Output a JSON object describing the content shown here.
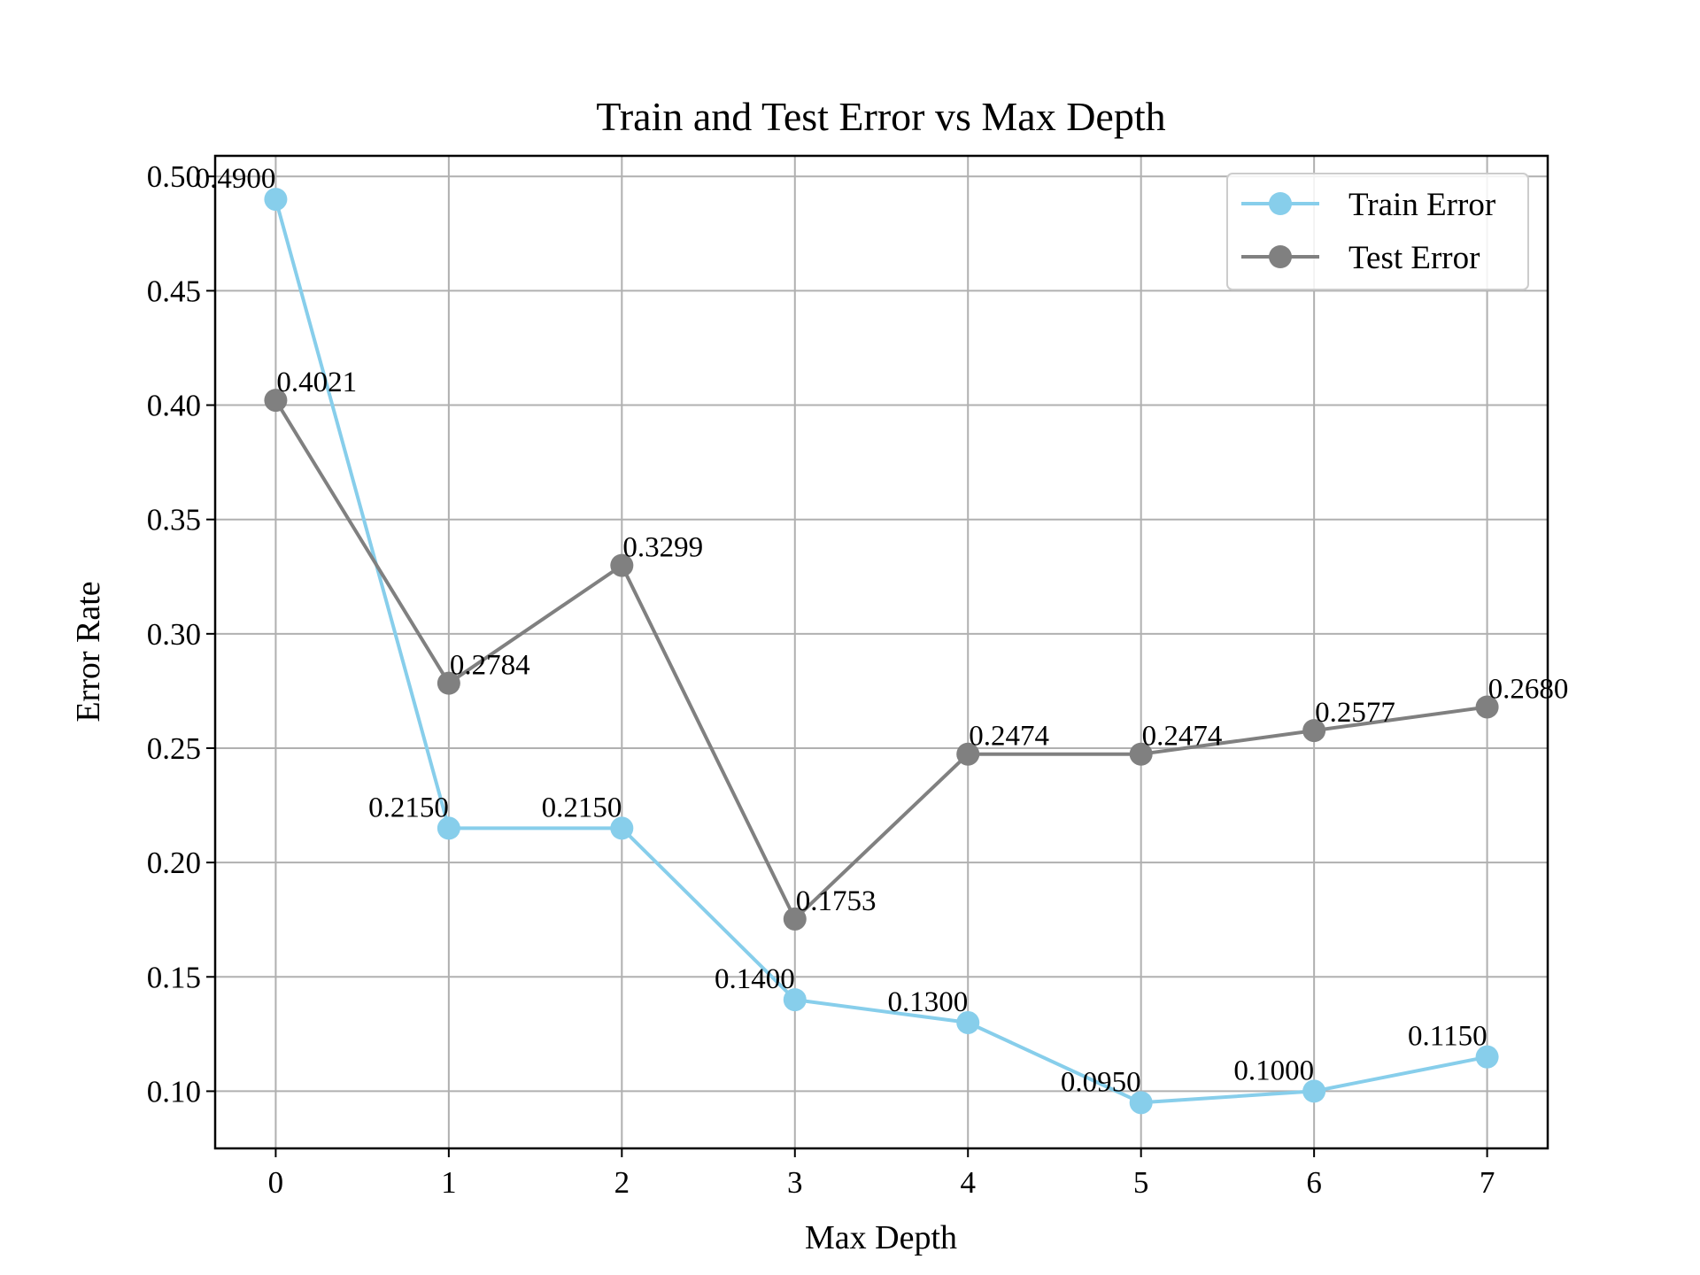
{
  "chart_data": {
    "type": "line",
    "title": "Train and Test Error vs Max Depth",
    "xlabel": "Max Depth",
    "ylabel": "Error Rate",
    "x": [
      0,
      1,
      2,
      3,
      4,
      5,
      6,
      7
    ],
    "xlim": [
      -0.35,
      7.35
    ],
    "ylim": [
      0.075,
      0.509
    ],
    "xticks": [
      "0",
      "1",
      "2",
      "3",
      "4",
      "5",
      "6",
      "7"
    ],
    "yticks": [
      "0.10",
      "0.15",
      "0.20",
      "0.25",
      "0.30",
      "0.35",
      "0.40",
      "0.45",
      "0.50"
    ],
    "grid": true,
    "legend_position": "top-right",
    "series": [
      {
        "name": "Train Error",
        "color": "#87CEEB",
        "marker": "circle",
        "values": [
          0.49,
          0.215,
          0.215,
          0.14,
          0.13,
          0.095,
          0.1,
          0.115
        ],
        "labels": [
          "0.4900",
          "0.2150",
          "0.2150",
          "0.1400",
          "0.1300",
          "0.0950",
          "0.1000",
          "0.1150"
        ]
      },
      {
        "name": "Test Error",
        "color": "#808080",
        "marker": "circle",
        "values": [
          0.4021,
          0.2784,
          0.3299,
          0.1753,
          0.2474,
          0.2474,
          0.2577,
          0.268
        ],
        "labels": [
          "0.4021",
          "0.2784",
          "0.3299",
          "0.1753",
          "0.2474",
          "0.2474",
          "0.2577",
          "0.2680"
        ]
      }
    ]
  }
}
